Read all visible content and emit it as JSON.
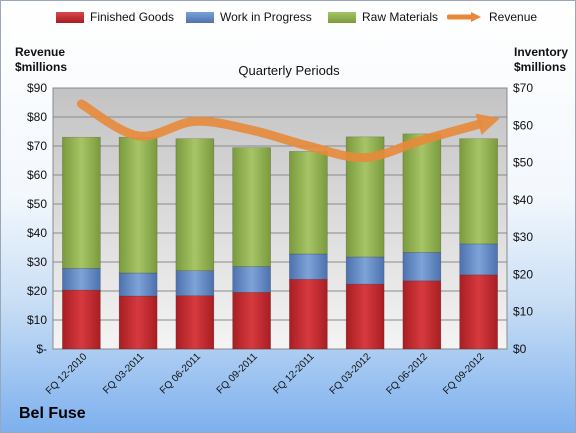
{
  "legend": {
    "finished": "Finished Goods",
    "wip": "Work in Progress",
    "raw": "Raw Materials",
    "revenue": "Revenue"
  },
  "left_axis": {
    "line1": "Revenue",
    "line2": "$millions"
  },
  "right_axis": {
    "line1": "Inventory",
    "line2": "$millions"
  },
  "brand": "Bel Fuse",
  "chart_data": {
    "type": "bar",
    "title": "Quarterly Periods",
    "stacked": true,
    "categories": [
      "FQ 12-2010",
      "FQ 03-2011",
      "FQ 06-2011",
      "FQ 09-2011",
      "FQ 12-2011",
      "FQ 03-2012",
      "FQ 06-2012",
      "FQ 09-2012"
    ],
    "series": [
      {
        "name": "Finished Goods",
        "axis": "right",
        "color": "#c0262c",
        "values": [
          15.8,
          14.2,
          14.3,
          15.2,
          18.7,
          17.4,
          18.3,
          19.9
        ]
      },
      {
        "name": "Work in Progress",
        "axis": "right",
        "color": "#5d84c2",
        "values": [
          5.8,
          6.2,
          6.7,
          6.9,
          6.8,
          7.3,
          7.6,
          8.3
        ]
      },
      {
        "name": "Raw Materials",
        "axis": "right",
        "color": "#8fb04f",
        "values": [
          35.2,
          36.4,
          35.4,
          31.9,
          27.5,
          32.2,
          31.8,
          28.2
        ]
      },
      {
        "name": "Revenue",
        "axis": "left",
        "type": "line",
        "color": "#e8893a",
        "values": [
          84.5,
          73.5,
          78.5,
          75.5,
          70.0,
          66.0,
          72.0,
          77.5
        ]
      }
    ],
    "left_ticks": [
      "$-",
      "$10",
      "$20",
      "$30",
      "$40",
      "$50",
      "$60",
      "$70",
      "$80",
      "$90"
    ],
    "right_ticks": [
      "$0",
      "$10",
      "$20",
      "$30",
      "$40",
      "$50",
      "$60",
      "$70"
    ],
    "ylim_left": [
      0,
      90
    ],
    "ylim_right": [
      0,
      70
    ],
    "grid": true,
    "legend_position": "top"
  }
}
